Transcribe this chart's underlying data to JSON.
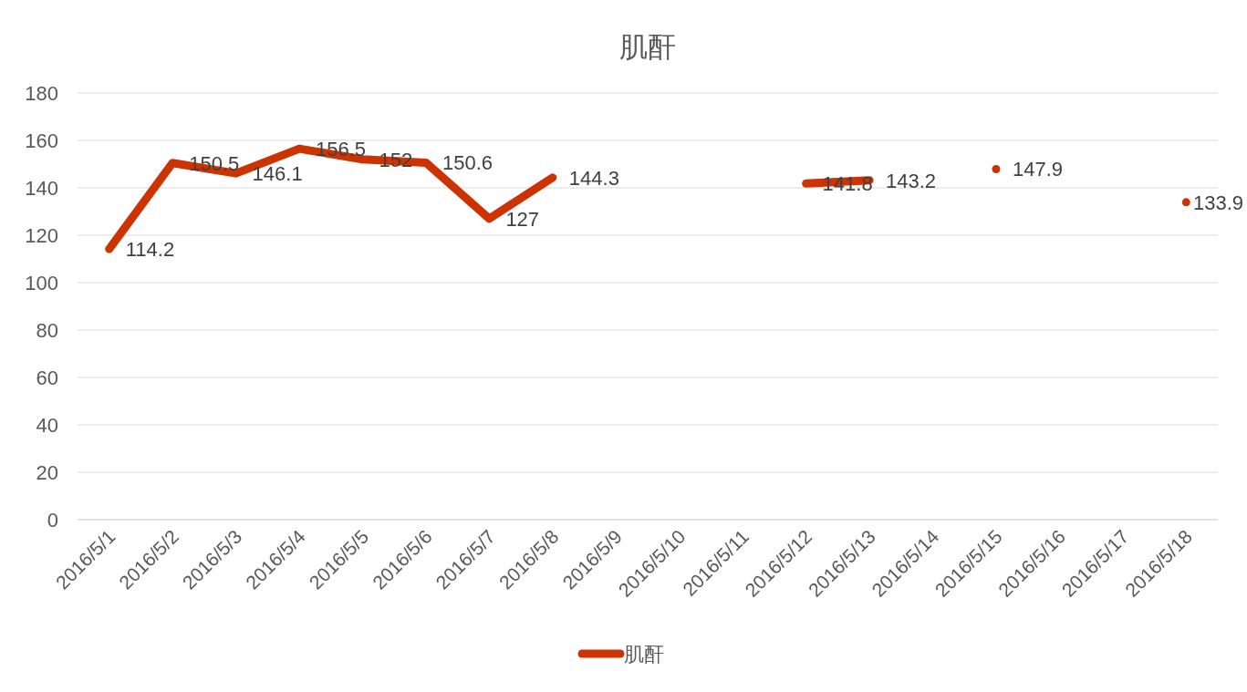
{
  "chart_data": {
    "type": "line",
    "title": "肌酐",
    "categories": [
      "2016/5/1",
      "2016/5/2",
      "2016/5/3",
      "2016/5/4",
      "2016/5/5",
      "2016/5/6",
      "2016/5/7",
      "2016/5/8",
      "2016/5/9",
      "2016/5/10",
      "2016/5/11",
      "2016/5/12",
      "2016/5/13",
      "2016/5/14",
      "2016/5/15",
      "2016/5/16",
      "2016/5/17",
      "2016/5/18"
    ],
    "series": [
      {
        "name": "肌酐",
        "color": "#cc3300",
        "values": [
          114.2,
          150.5,
          146.1,
          156.5,
          152,
          150.6,
          127,
          144.3,
          null,
          null,
          null,
          141.8,
          143.2,
          null,
          147.9,
          null,
          null,
          133.9
        ]
      }
    ],
    "ylim": [
      0,
      180
    ],
    "yticks": [
      0,
      20,
      40,
      60,
      80,
      100,
      120,
      140,
      160,
      180
    ],
    "grid": "y",
    "legend": "bottom",
    "data_labels": true,
    "marker": "none",
    "line_style": "solid"
  }
}
